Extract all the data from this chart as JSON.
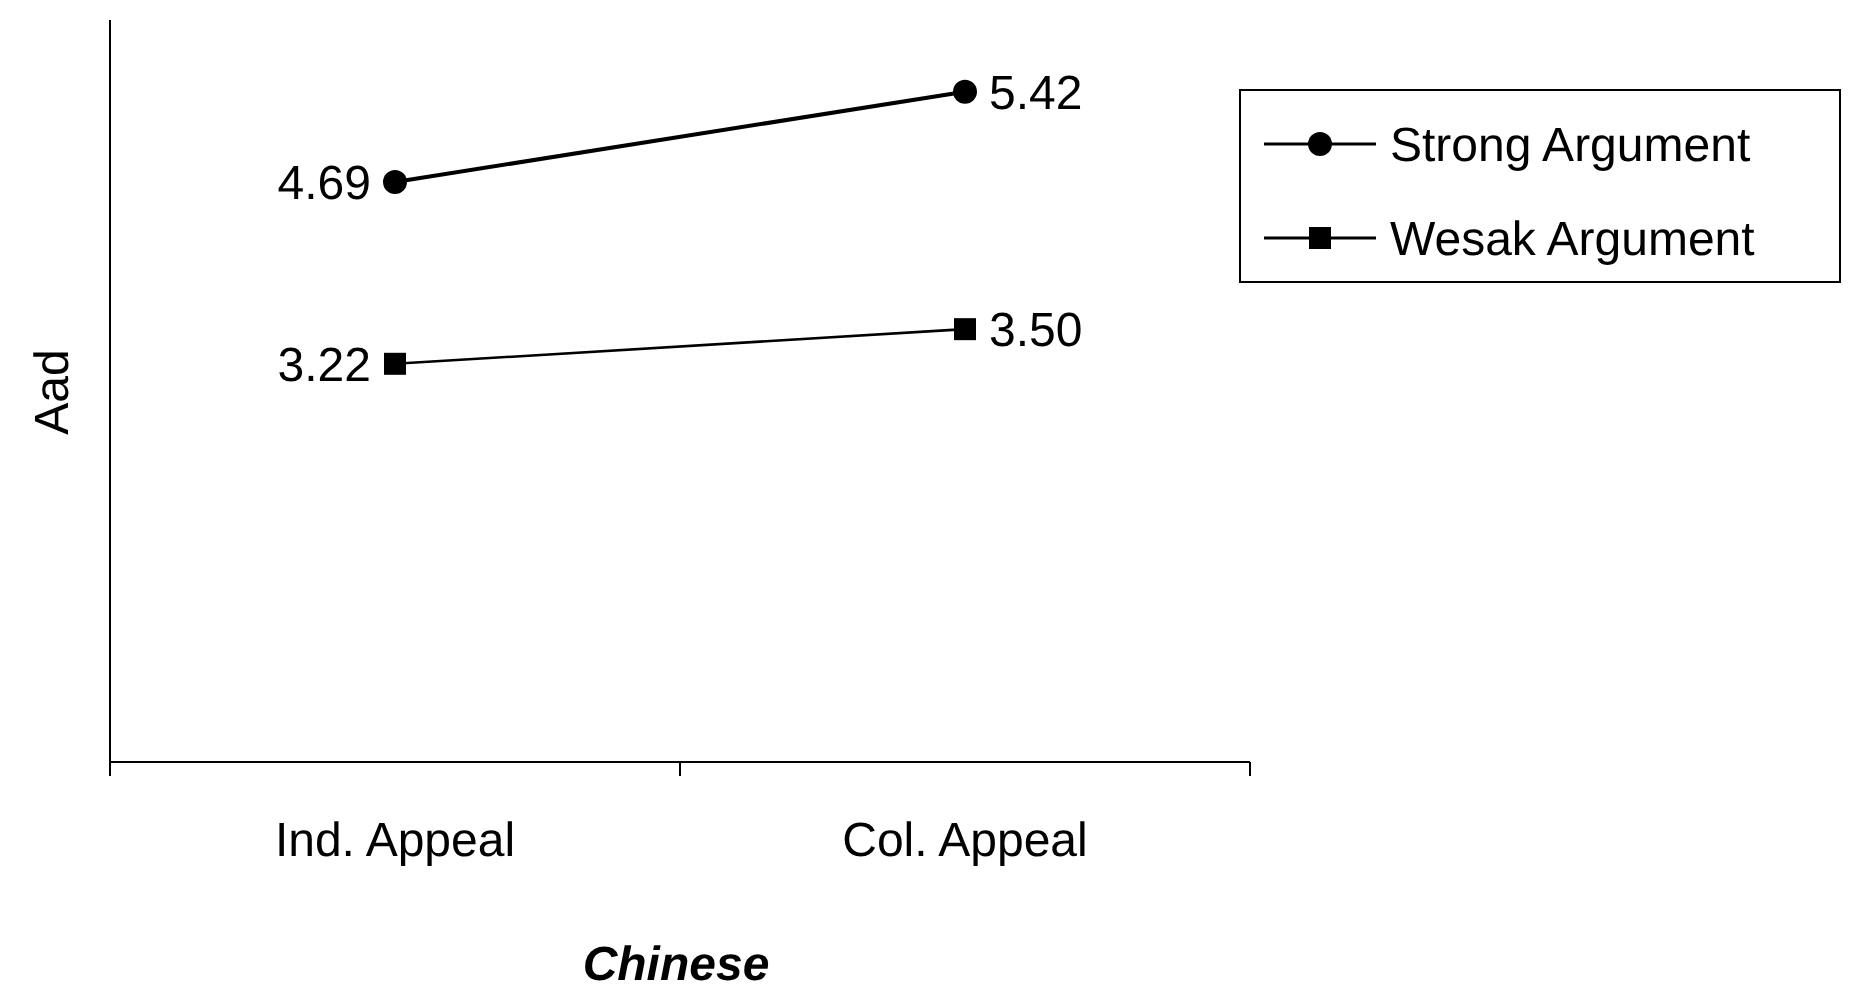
{
  "chart_data": {
    "type": "line",
    "xlabel": "Chinese",
    "ylabel": "Aad",
    "categories": [
      "Ind. Appeal",
      "Col. Appeal"
    ],
    "ylim": [
      0,
      6
    ],
    "tick_labels": "x",
    "legend": "top right",
    "grid": false,
    "series": [
      {
        "name": "Strong Argument",
        "color": "#000000",
        "marker": "circle",
        "values": [
          4.69,
          5.42
        ],
        "value_labels": [
          "4.69",
          "5.42"
        ]
      },
      {
        "name": "Wesak Argument",
        "color": "#000000",
        "marker": "square",
        "values": [
          3.22,
          3.5
        ],
        "value_labels": [
          "3.22",
          "3.50"
        ]
      }
    ]
  }
}
